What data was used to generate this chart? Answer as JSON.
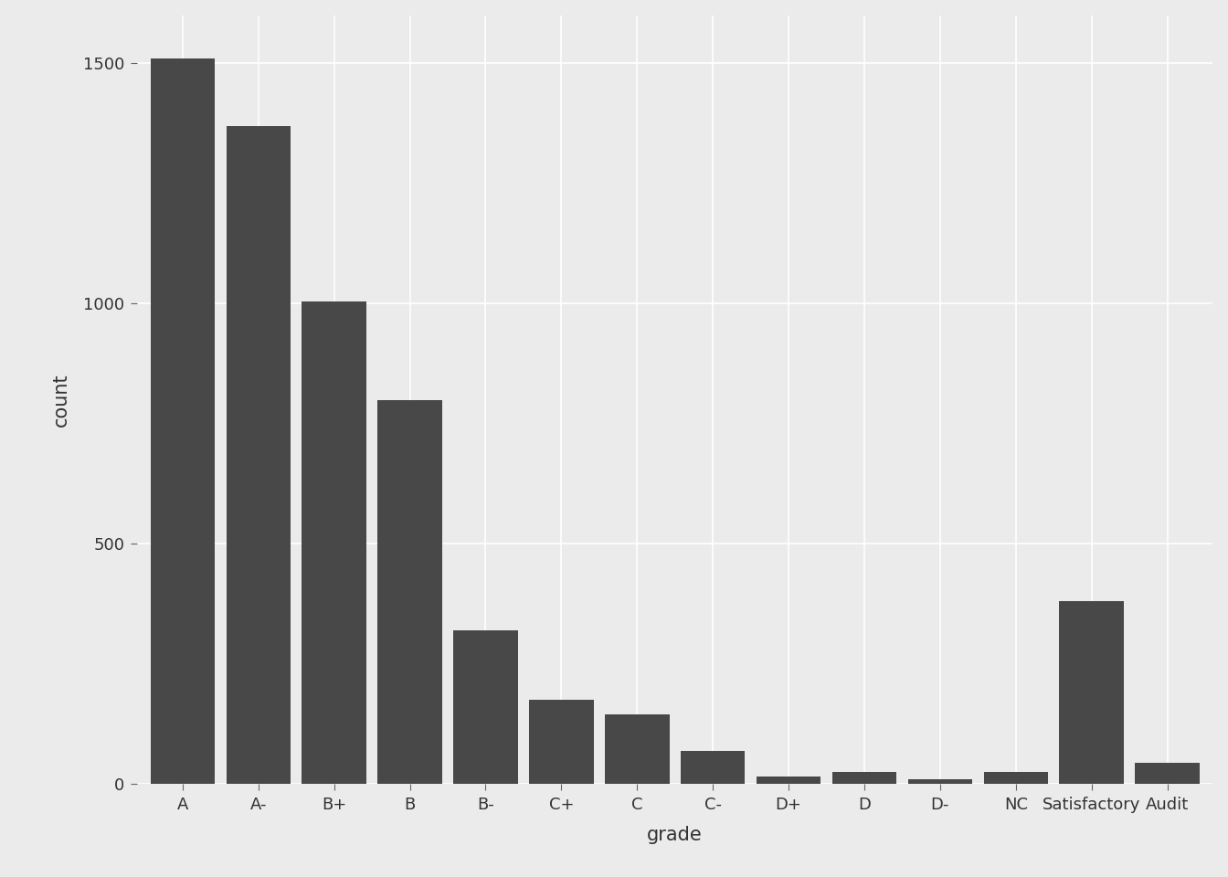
{
  "categories": [
    "A",
    "A-",
    "B+",
    "B",
    "B-",
    "C+",
    "C",
    "C-",
    "D+",
    "D",
    "D-",
    "NC",
    "Satisfactory",
    "Audit"
  ],
  "values": [
    1510,
    1370,
    1005,
    800,
    320,
    175,
    145,
    70,
    15,
    25,
    10,
    25,
    380,
    45
  ],
  "bar_color": "#484848",
  "background_color": "#ebebeb",
  "panel_background": "#ebebeb",
  "grid_color": "#ffffff",
  "xlabel": "grade",
  "ylabel": "count",
  "ylim": [
    0,
    1600
  ],
  "yticks": [
    0,
    500,
    1000,
    1500
  ],
  "axis_label_fontsize": 15,
  "tick_label_fontsize": 13
}
